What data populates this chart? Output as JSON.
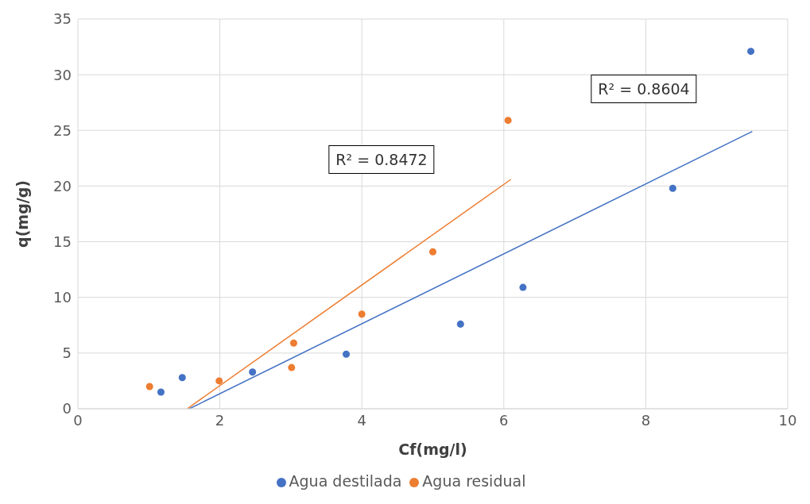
{
  "chart_data": {
    "type": "scatter",
    "xlabel": "Cf(mg/l)",
    "ylabel": "q(mg/g)",
    "xlim": [
      0,
      10
    ],
    "xticks": [
      0,
      2,
      4,
      6,
      8,
      10
    ],
    "ylim": [
      0,
      35
    ],
    "yticks": [
      0,
      5,
      10,
      15,
      20,
      25,
      30,
      35
    ],
    "grid": true,
    "legend": "bottom",
    "series": [
      {
        "name": "Agua destilada",
        "color": "#4472c4",
        "marker": "circle",
        "x": [
          1.17,
          1.47,
          2.46,
          3.78,
          5.39,
          6.27,
          8.38,
          9.48
        ],
        "values": [
          1.5,
          2.8,
          3.3,
          4.9,
          7.6,
          10.9,
          19.8,
          32.1
        ]
      },
      {
        "name": "Agua residual",
        "color": "#ed7d31",
        "marker": "circle",
        "x": [
          1.01,
          1.99,
          3.01,
          3.04,
          4.0,
          5.0,
          6.06
        ],
        "values": [
          2.0,
          2.5,
          3.7,
          5.9,
          8.5,
          14.1,
          25.9
        ]
      },
      {
        "type": "line",
        "color": "#4472c4",
        "x": [
          1.57,
          9.5
        ],
        "values": [
          0,
          24.9
        ]
      },
      {
        "type": "line",
        "color": "#ed7d31",
        "x": [
          1.54,
          6.1
        ],
        "values": [
          0,
          20.6
        ]
      }
    ],
    "annotations": [
      "R² = 0.8472",
      "R² = 0.8604"
    ]
  }
}
